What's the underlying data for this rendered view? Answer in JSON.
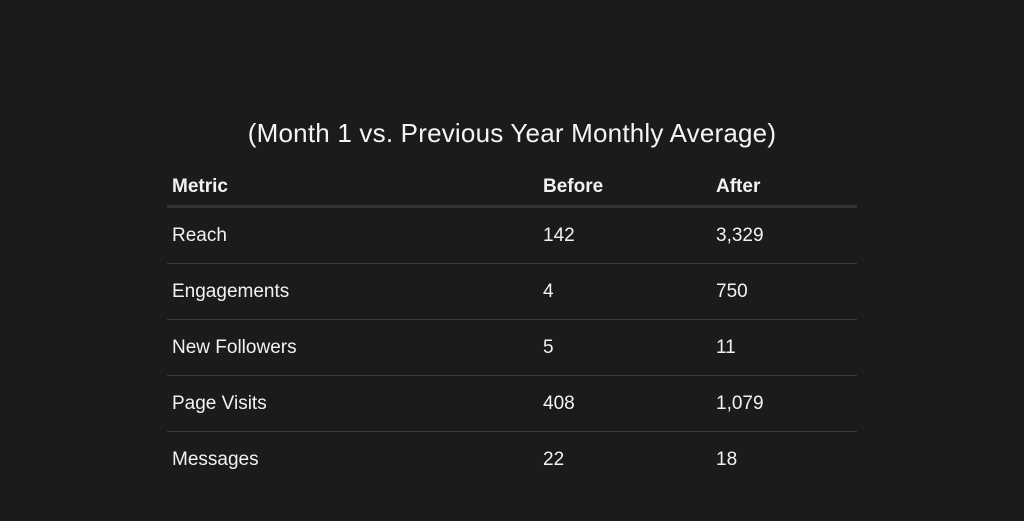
{
  "table": {
    "title": "(Month 1 vs. Previous Year Monthly Average)",
    "columns": [
      "Metric",
      "Before",
      "After"
    ],
    "rows": [
      {
        "metric": "Reach",
        "before": "142",
        "after": "3,329"
      },
      {
        "metric": "Engagements",
        "before": "4",
        "after": "750"
      },
      {
        "metric": "New Followers",
        "before": "5",
        "after": "11"
      },
      {
        "metric": "Page Visits",
        "before": "408",
        "after": "1,079"
      },
      {
        "metric": "Messages",
        "before": "22",
        "after": "18"
      }
    ]
  }
}
